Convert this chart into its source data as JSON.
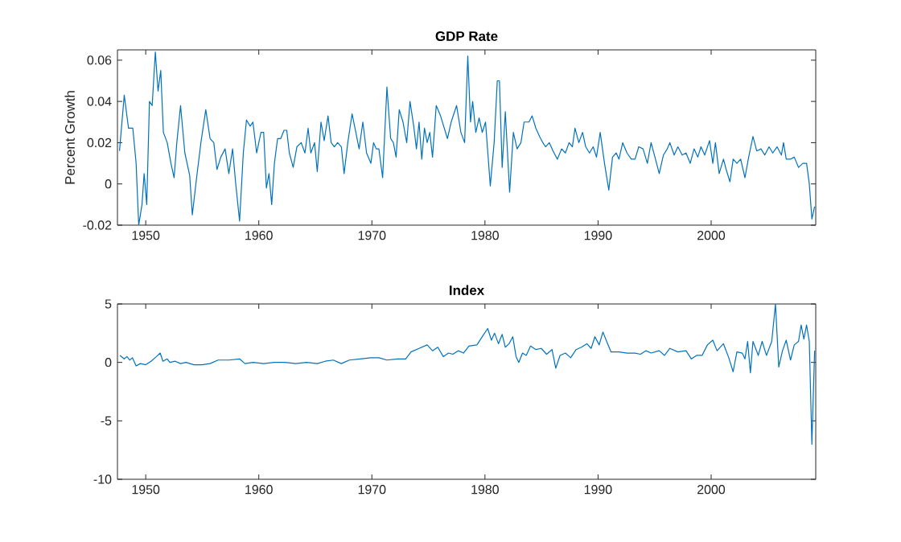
{
  "chart_data": [
    {
      "type": "line",
      "title": "GDP Rate",
      "ylabel": "Percent Growth",
      "color": "#0072bd",
      "xlim": [
        1947.5,
        2009.25
      ],
      "ylim": [
        -0.02,
        0.065
      ],
      "xticks": [
        1950,
        1960,
        1970,
        1980,
        1990,
        2000
      ],
      "yticks": [
        -0.02,
        0,
        0.02,
        0.04,
        0.06
      ],
      "x": [
        1947.68,
        1948.1,
        1948.48,
        1948.86,
        1949.15,
        1949.38,
        1949.67,
        1949.86,
        1950.09,
        1950.33,
        1950.57,
        1950.85,
        1951.09,
        1951.33,
        1951.56,
        1951.9,
        1952.23,
        1952.51,
        1952.75,
        1953.08,
        1953.46,
        1953.89,
        1954.12,
        1954.5,
        1954.88,
        1955.31,
        1955.69,
        1956.02,
        1956.3,
        1956.64,
        1957.02,
        1957.35,
        1957.68,
        1957.96,
        1958.3,
        1958.63,
        1958.91,
        1959.24,
        1959.48,
        1959.81,
        1960.19,
        1960.43,
        1960.67,
        1960.9,
        1961.14,
        1961.38,
        1961.66,
        1961.94,
        1962.23,
        1962.47,
        1962.7,
        1963.04,
        1963.37,
        1963.75,
        1964.08,
        1964.36,
        1964.6,
        1964.93,
        1965.17,
        1965.5,
        1965.78,
        1966.12,
        1966.4,
        1966.68,
        1966.97,
        1967.3,
        1967.54,
        1967.87,
        1968.25,
        1968.58,
        1968.87,
        1969.2,
        1969.53,
        1969.91,
        1970.15,
        1970.38,
        1970.62,
        1970.95,
        1971.33,
        1971.66,
        1971.9,
        1972.14,
        1972.42,
        1972.75,
        1973.08,
        1973.37,
        1973.7,
        1973.94,
        1974.17,
        1974.41,
        1974.65,
        1974.89,
        1975.12,
        1975.36,
        1975.69,
        1976.07,
        1976.68,
        1977.01,
        1977.49,
        1977.87,
        1978.2,
        1978.48,
        1978.72,
        1978.91,
        1979.19,
        1979.48,
        1979.76,
        1980.05,
        1980.47,
        1980.81,
        1981.09,
        1981.28,
        1981.52,
        1981.8,
        1982.18,
        1982.51,
        1982.84,
        1983.18,
        1983.46,
        1983.89,
        1984.17,
        1984.5,
        1984.83,
        1985.12,
        1985.36,
        1985.69,
        1986.02,
        1986.4,
        1986.78,
        1987.11,
        1987.44,
        1987.73,
        1987.96,
        1988.3,
        1988.63,
        1988.91,
        1989.24,
        1989.57,
        1989.86,
        1990.19,
        1990.57,
        1990.95,
        1991.28,
        1991.61,
        1991.85,
        1992.18,
        1992.56,
        1992.94,
        1993.27,
        1993.6,
        1993.98,
        1994.36,
        1994.69,
        1995.03,
        1995.41,
        1995.78,
        1996.12,
        1996.35,
        1996.73,
        1997.06,
        1997.44,
        1997.78,
        1998.15,
        1998.49,
        1998.82,
        1999.1,
        1999.43,
        1999.86,
        2000.15,
        2000.38,
        2000.71,
        2001.09,
        2001.33,
        2001.66,
        2001.95,
        2002.28,
        2002.61,
        2002.99,
        2003.32,
        2003.7,
        2004.03,
        2004.41,
        2004.74,
        2005.12,
        2005.45,
        2005.83,
        2006.21,
        2006.4,
        2006.64,
        2007.02,
        2007.35,
        2007.73,
        2008.11,
        2008.44,
        2008.68,
        2008.91,
        2009.15
      ],
      "values": [
        0.016,
        0.043,
        0.027,
        0.027,
        0.01,
        -0.02,
        -0.01,
        0.005,
        -0.01,
        0.04,
        0.038,
        0.064,
        0.045,
        0.055,
        0.025,
        0.02,
        0.01,
        0.003,
        0.02,
        0.038,
        0.015,
        0.004,
        -0.015,
        0.003,
        0.02,
        0.036,
        0.022,
        0.02,
        0.007,
        0.013,
        0.017,
        0.005,
        0.017,
        0.0,
        -0.018,
        0.015,
        0.031,
        0.028,
        0.03,
        0.015,
        0.025,
        0.025,
        -0.002,
        0.005,
        -0.01,
        0.01,
        0.022,
        0.022,
        0.026,
        0.026,
        0.015,
        0.008,
        0.018,
        0.02,
        0.015,
        0.027,
        0.015,
        0.02,
        0.006,
        0.03,
        0.021,
        0.033,
        0.02,
        0.018,
        0.02,
        0.018,
        0.005,
        0.02,
        0.034,
        0.025,
        0.017,
        0.03,
        0.015,
        0.01,
        0.02,
        0.017,
        0.017,
        0.003,
        0.047,
        0.022,
        0.02,
        0.013,
        0.036,
        0.03,
        0.02,
        0.04,
        0.028,
        0.017,
        0.03,
        0.012,
        0.027,
        0.02,
        0.025,
        0.013,
        0.038,
        0.033,
        0.022,
        0.03,
        0.038,
        0.025,
        0.02,
        0.062,
        0.03,
        0.04,
        0.025,
        0.032,
        0.025,
        0.03,
        -0.001,
        0.02,
        0.05,
        0.05,
        0.008,
        0.035,
        -0.004,
        0.025,
        0.017,
        0.02,
        0.03,
        0.03,
        0.033,
        0.027,
        0.023,
        0.02,
        0.018,
        0.02,
        0.016,
        0.012,
        0.017,
        0.015,
        0.02,
        0.018,
        0.027,
        0.02,
        0.025,
        0.018,
        0.015,
        0.018,
        0.013,
        0.025,
        0.01,
        -0.003,
        0.013,
        0.015,
        0.012,
        0.02,
        0.015,
        0.012,
        0.012,
        0.018,
        0.017,
        0.01,
        0.02,
        0.013,
        0.005,
        0.014,
        0.017,
        0.02,
        0.014,
        0.018,
        0.014,
        0.015,
        0.01,
        0.017,
        0.013,
        0.018,
        0.014,
        0.021,
        0.01,
        0.02,
        0.005,
        0.012,
        0.007,
        0.001,
        0.012,
        0.01,
        0.012,
        0.003,
        0.013,
        0.023,
        0.016,
        0.017,
        0.014,
        0.018,
        0.015,
        0.018,
        0.014,
        0.02,
        0.012,
        0.012,
        0.013,
        0.008,
        0.01,
        0.01,
        0.0,
        -0.017,
        -0.011
      ]
    },
    {
      "type": "line",
      "title": "Index",
      "color": "#0072bd",
      "xlim": [
        1947.5,
        2009.25
      ],
      "ylim": [
        -10,
        5
      ],
      "xticks": [
        1950,
        1960,
        1970,
        1980,
        1990,
        2000
      ],
      "yticks": [
        -10,
        -5,
        0,
        5
      ],
      "x": [
        1947.72,
        1948.1,
        1948.34,
        1948.58,
        1948.82,
        1949.15,
        1949.53,
        1950.0,
        1950.47,
        1950.95,
        1951.28,
        1951.52,
        1951.9,
        1952.13,
        1952.61,
        1953.08,
        1953.56,
        1954.27,
        1954.98,
        1955.69,
        1956.4,
        1957.35,
        1958.3,
        1958.77,
        1959.48,
        1960.43,
        1961.38,
        1962.32,
        1963.27,
        1964.22,
        1965.17,
        1965.88,
        1966.59,
        1967.3,
        1968.01,
        1968.96,
        1969.91,
        1970.62,
        1971.33,
        1972.28,
        1972.99,
        1973.46,
        1974.17,
        1974.89,
        1975.36,
        1975.83,
        1976.31,
        1976.78,
        1977.16,
        1977.63,
        1978.1,
        1978.58,
        1979.29,
        1979.76,
        1980.24,
        1980.57,
        1980.85,
        1981.19,
        1981.52,
        1981.8,
        1982.13,
        1982.46,
        1982.75,
        1982.99,
        1983.32,
        1983.65,
        1984.03,
        1984.5,
        1984.98,
        1985.45,
        1985.93,
        1986.26,
        1986.64,
        1987.11,
        1987.58,
        1988.06,
        1988.53,
        1989.01,
        1989.39,
        1989.72,
        1990.1,
        1990.43,
        1990.76,
        1991.14,
        1991.85,
        1992.56,
        1993.27,
        1993.75,
        1994.22,
        1994.69,
        1995.41,
        1995.88,
        1996.35,
        1997.06,
        1997.78,
        1998.25,
        1998.72,
        1999.2,
        1999.67,
        2000.15,
        2000.52,
        2001.09,
        2001.56,
        2001.94,
        2002.28,
        2002.75,
        2002.99,
        2003.23,
        2003.47,
        2003.7,
        2004.17,
        2004.51,
        2004.89,
        2005.36,
        2005.69,
        2005.98,
        2006.31,
        2006.64,
        2007.02,
        2007.35,
        2007.73,
        2007.96,
        2008.2,
        2008.44,
        2008.68,
        2008.91,
        2009.15
      ],
      "values": [
        0.6,
        0.3,
        0.5,
        0.2,
        0.4,
        -0.3,
        -0.1,
        -0.2,
        0.1,
        0.5,
        0.8,
        0.1,
        0.3,
        0.0,
        0.1,
        -0.1,
        0.0,
        -0.2,
        -0.2,
        -0.1,
        0.2,
        0.2,
        0.3,
        -0.1,
        0.0,
        -0.1,
        0.0,
        0.0,
        -0.1,
        0.0,
        -0.1,
        0.1,
        0.2,
        -0.1,
        0.2,
        0.3,
        0.4,
        0.4,
        0.2,
        0.3,
        0.3,
        0.9,
        1.2,
        1.5,
        1.0,
        1.3,
        0.5,
        0.8,
        0.7,
        1.0,
        0.8,
        1.4,
        1.5,
        2.2,
        2.9,
        1.9,
        2.5,
        1.6,
        2.4,
        1.3,
        1.6,
        2.2,
        0.5,
        0.0,
        0.8,
        0.6,
        1.4,
        1.1,
        1.2,
        0.7,
        1.1,
        -0.5,
        0.6,
        0.8,
        0.4,
        1.1,
        1.3,
        1.6,
        1.2,
        2.2,
        1.5,
        2.6,
        1.8,
        0.9,
        0.9,
        0.8,
        0.8,
        0.7,
        1.0,
        0.8,
        1.0,
        0.6,
        1.2,
        0.9,
        1.0,
        0.3,
        0.6,
        0.6,
        1.5,
        1.9,
        1.0,
        1.6,
        0.4,
        -0.8,
        0.9,
        0.8,
        0.3,
        1.8,
        -0.9,
        1.8,
        0.6,
        1.8,
        0.6,
        1.8,
        5.0,
        -0.4,
        1.0,
        1.9,
        0.2,
        1.5,
        1.8,
        3.2,
        2.0,
        3.2,
        1.8,
        -7.0,
        1.0
      ]
    }
  ]
}
